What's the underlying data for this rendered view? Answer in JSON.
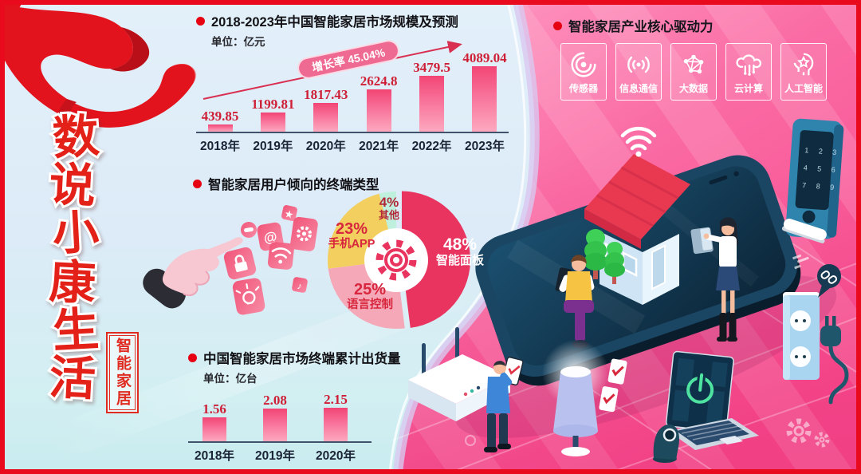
{
  "poster": {
    "vertical_title": "数说小康生活",
    "vertical_title_chars": [
      "数",
      "说",
      "小",
      "康",
      "生",
      "活"
    ],
    "side_badge": "智能家居"
  },
  "chart_data": [
    {
      "type": "bar",
      "title": "2018-2023年中国智能家居市场规模及预测",
      "unit_label": "单位：亿元",
      "categories": [
        "2018年",
        "2019年",
        "2020年",
        "2021年",
        "2022年",
        "2023年"
      ],
      "values": [
        439.85,
        1199.81,
        1817.43,
        2624.8,
        3479.5,
        4089.04
      ],
      "annotation": "增长率 45.04%",
      "ylabel": "亿元",
      "ylim": [
        0,
        4500
      ],
      "bar_color_top": "#f24574",
      "bar_color_bottom": "#fda9bf",
      "value_label_color": "#ce1f36"
    },
    {
      "type": "pie",
      "title": "智能家居用户倾向的终端类型",
      "labels": [
        "智能面板",
        "语言控制",
        "手机APP",
        "其他"
      ],
      "values": [
        48,
        25,
        23,
        4
      ],
      "colors": [
        "#e8345f",
        "#f5a9b8",
        "#f3cf60",
        "#bff0dd"
      ],
      "center_icon": "gear-icon",
      "legend_position": "inside"
    },
    {
      "type": "bar",
      "title": "中国智能家居市场终端累计出货量",
      "unit_label": "单位：亿台",
      "categories": [
        "2018年",
        "2019年",
        "2020年"
      ],
      "values": [
        1.56,
        2.08,
        2.15
      ],
      "ylabel": "亿台",
      "ylim": [
        0,
        2.5
      ]
    }
  ],
  "drivers": {
    "title": "智能家居产业核心驱动力",
    "items": [
      {
        "label": "传感器",
        "icon": "sensor-icon"
      },
      {
        "label": "信息通信",
        "icon": "communication-icon"
      },
      {
        "label": "大数据",
        "icon": "big-data-icon"
      },
      {
        "label": "云计算",
        "icon": "cloud-computing-icon"
      },
      {
        "label": "人工智能",
        "icon": "ai-icon"
      }
    ]
  },
  "illustration": {
    "smart_lock_keypad": {
      "row1": "1 2 3",
      "row2": "4 5 6",
      "row3": "7 8 9"
    }
  },
  "colors": {
    "frame_red": "#ea0a1e",
    "left_background": "#dcebf7",
    "pink_background": "#fa6ba4",
    "accent_red": "#e02b20",
    "bar_pink": "#f24574",
    "pie_panel": "#e8345f",
    "pie_voice": "#f5a9b8",
    "pie_app": "#f3cf60",
    "pie_other": "#bff0dd"
  }
}
